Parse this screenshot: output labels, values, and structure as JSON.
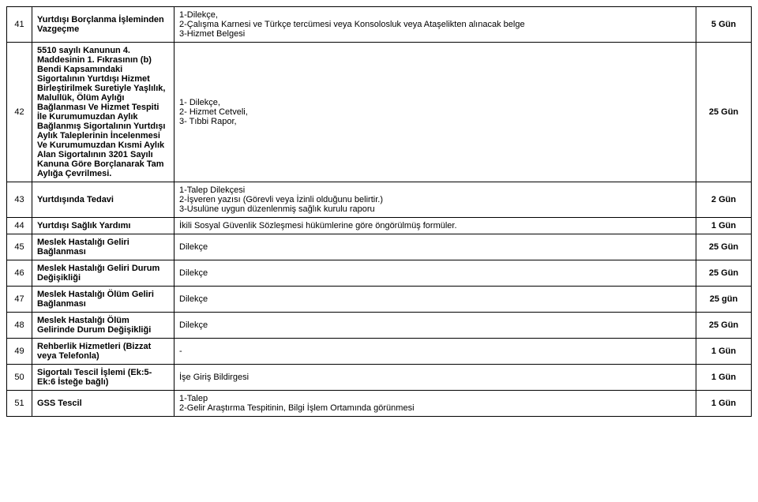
{
  "rows": [
    {
      "num": "41",
      "title": "Yurtdışı Borçlanma İşleminden Vazgeçme",
      "docs": "1-Dilekçe,\n2-Çalışma Karnesi ve Türkçe tercümesi veya Konsolosluk veya Ataşelikten alınacak belge\n3-Hizmet Belgesi",
      "dur": "5 Gün"
    },
    {
      "num": "42",
      "title": "5510 sayılı Kanunun 4. Maddesinin 1. Fıkrasının (b) Bendi Kapsamındaki Sigortalının Yurtdışı Hizmet Birleştirilmek Suretiyle Yaşlılık, Malullük, Ölüm Aylığı Bağlanması Ve Hizmet Tespiti İle Kurumumuzdan Aylık Bağlanmış Sigortalının Yurtdışı Aylık Taleplerinin İncelenmesi Ve Kurumumuzdan Kısmi Aylık Alan Sigortalının 3201 Sayılı Kanuna Göre Borçlanarak Tam Aylığa Çevrilmesi.",
      "docs": "1- Dilekçe,\n2- Hizmet Cetveli,\n3- Tıbbi Rapor,",
      "dur": "25 Gün"
    },
    {
      "num": "43",
      "title": "Yurtdışında Tedavi",
      "docs": "1-Talep Dilekçesi\n2-İşveren yazısı (Görevli veya İzinli olduğunu belirtir.)\n3-Usulüne uygun düzenlenmiş sağlık kurulu raporu",
      "dur": "2 Gün"
    },
    {
      "num": "44",
      "title": "Yurtdışı Sağlık Yardımı",
      "docs": "İkili Sosyal Güvenlik Sözleşmesi hükümlerine göre öngörülmüş formüler.",
      "dur": "1 Gün"
    },
    {
      "num": "45",
      "title": "Meslek Hastalığı Geliri Bağlanması",
      "docs": "Dilekçe",
      "dur": "25 Gün"
    },
    {
      "num": "46",
      "title": "Meslek Hastalığı Geliri Durum Değişikliği",
      "docs": "Dilekçe",
      "dur": "25 Gün"
    },
    {
      "num": "47",
      "title": "Meslek Hastalığı Ölüm Geliri Bağlanması",
      "docs": "Dilekçe",
      "dur": "25 gün"
    },
    {
      "num": "48",
      "title": "Meslek Hastalığı Ölüm Gelirinde Durum Değişikliği",
      "docs": "Dilekçe",
      "dur": "25 Gün"
    },
    {
      "num": "49",
      "title": "Rehberlik Hizmetleri (Bizzat veya Telefonla)",
      "docs": "-",
      "dur": "1 Gün"
    },
    {
      "num": "50",
      "title": "Sigortalı Tescil İşlemi (Ek:5-Ek:6 İsteğe bağlı)",
      "docs": "İşe Giriş Bildirgesi",
      "dur": "1 Gün"
    },
    {
      "num": "51",
      "title": "GSS Tescil",
      "docs": "1-Talep\n2-Gelir Araştırma Tespitinin, Bilgi İşlem Ortamında görünmesi",
      "dur": "1 Gün"
    }
  ]
}
